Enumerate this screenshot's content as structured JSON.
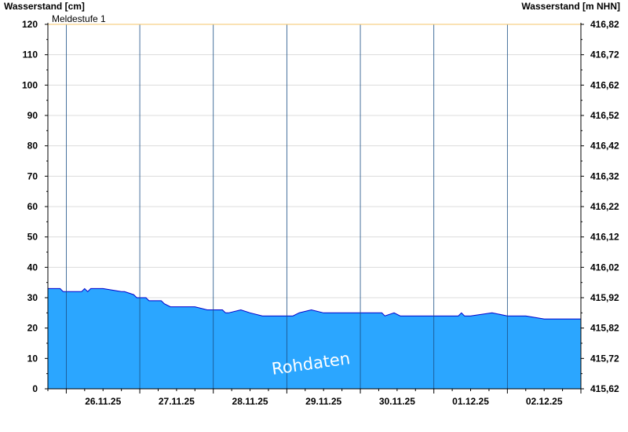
{
  "chart_data": {
    "type": "area",
    "left_axis_title": "Wasserstand [cm]",
    "right_axis_title": "Wasserstand [m NHN]",
    "watermark": "Rohdaten",
    "ylim": [
      0,
      120
    ],
    "y_ticks": [
      0,
      10,
      20,
      30,
      40,
      50,
      60,
      70,
      80,
      90,
      100,
      110,
      120
    ],
    "right_ticks": [
      "415,62",
      "415,72",
      "415,82",
      "415,92",
      "416,02",
      "416,12",
      "416,22",
      "416,32",
      "416,42",
      "416,52",
      "416,62",
      "416,72",
      "416,82"
    ],
    "x_range": [
      "2025-11-25 18:00",
      "2025-12-02 24:00"
    ],
    "x_tick_labels": [
      "26.11.25",
      "27.11.25",
      "28.11.25",
      "29.11.25",
      "30.11.25",
      "01.12.25",
      "02.12.25"
    ],
    "grid": true,
    "reference_line": {
      "label": "Meldestufe 1",
      "value": 120,
      "color": "#f5c46a"
    },
    "fill_color": "#2ba6ff",
    "line_color": "#0000cc",
    "series": [
      {
        "x": [
          "2025-11-25 18:00",
          "2025-11-25 22:00",
          "2025-11-25 23:00",
          "2025-11-26 05:00",
          "2025-11-26 06:00",
          "2025-11-26 07:00",
          "2025-11-26 08:00",
          "2025-11-26 12:00",
          "2025-11-26 18:00",
          "2025-11-26 19:00",
          "2025-11-26 22:00",
          "2025-11-26 23:00",
          "2025-11-27 02:00",
          "2025-11-27 03:00",
          "2025-11-27 07:00",
          "2025-11-27 08:00",
          "2025-11-27 10:00",
          "2025-11-27 12:00",
          "2025-11-27 18:00",
          "2025-11-27 22:00",
          "2025-11-28 03:00",
          "2025-11-28 04:00",
          "2025-11-28 05:00",
          "2025-11-28 09:00",
          "2025-11-28 12:00",
          "2025-11-28 16:00",
          "2025-11-29 00:00",
          "2025-11-29 02:00",
          "2025-11-29 04:00",
          "2025-11-29 08:00",
          "2025-11-29 12:00",
          "2025-11-29 18:00",
          "2025-11-30 00:00",
          "2025-11-30 07:00",
          "2025-11-30 08:00",
          "2025-11-30 11:00",
          "2025-11-30 13:00",
          "2025-11-30 18:00",
          "2025-12-01 00:00",
          "2025-12-01 04:00",
          "2025-12-01 08:00",
          "2025-12-01 09:00",
          "2025-12-01 10:00",
          "2025-12-01 12:00",
          "2025-12-01 19:00",
          "2025-12-02 00:00",
          "2025-12-02 06:00",
          "2025-12-02 12:00",
          "2025-12-02 24:00"
        ],
        "values": [
          33,
          33,
          32,
          32,
          33,
          32,
          33,
          33,
          32,
          32,
          31,
          30,
          30,
          29,
          29,
          28,
          27,
          27,
          27,
          26,
          26,
          25,
          25,
          26,
          25,
          24,
          24,
          24,
          25,
          26,
          25,
          25,
          25,
          25,
          24,
          25,
          24,
          24,
          24,
          24,
          24,
          25,
          24,
          24,
          25,
          24,
          24,
          23,
          23
        ]
      }
    ]
  }
}
